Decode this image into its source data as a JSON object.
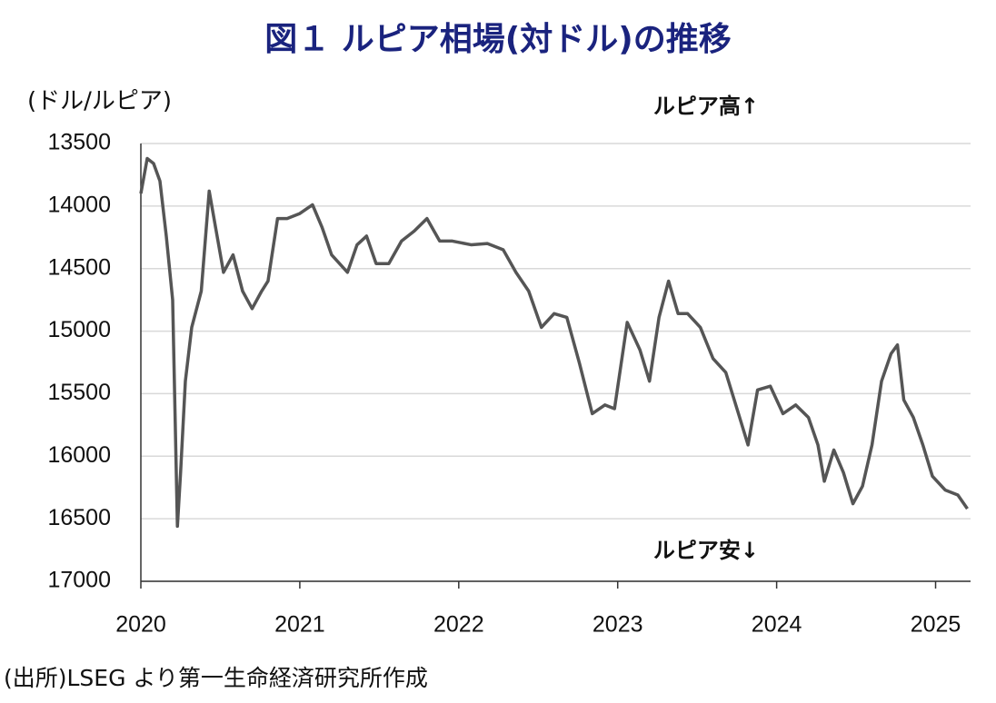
{
  "chart_data": {
    "type": "line",
    "title": "図１ ルピア相場(対ドル)の推移",
    "y_label": "(ドル/ルピア)",
    "annotations": [
      "ルピア高↑",
      "ルピア安↓"
    ],
    "source": "(出所)LSEG より第一生命経済研究所作成",
    "x": [
      2020.0,
      2020.04,
      2020.08,
      2020.12,
      2020.16,
      2020.2,
      2020.23,
      2020.25,
      2020.28,
      2020.32,
      2020.38,
      2020.43,
      2020.47,
      2020.52,
      2020.58,
      2020.64,
      2020.7,
      2020.76,
      2020.8,
      2020.86,
      2020.92,
      2021.0,
      2021.08,
      2021.14,
      2021.2,
      2021.3,
      2021.36,
      2021.42,
      2021.48,
      2021.56,
      2021.64,
      2021.72,
      2021.8,
      2021.88,
      2021.96,
      2022.08,
      2022.18,
      2022.28,
      2022.36,
      2022.44,
      2022.52,
      2022.6,
      2022.68,
      2022.76,
      2022.84,
      2022.92,
      2022.98,
      2023.06,
      2023.14,
      2023.2,
      2023.26,
      2023.32,
      2023.38,
      2023.44,
      2023.52,
      2023.6,
      2023.68,
      2023.76,
      2023.82,
      2023.88,
      2023.96,
      2024.04,
      2024.12,
      2024.2,
      2024.26,
      2024.3,
      2024.36,
      2024.42,
      2024.48,
      2024.54,
      2024.6,
      2024.66,
      2024.72,
      2024.76,
      2024.8,
      2024.86,
      2024.92,
      2024.98,
      2025.06,
      2025.14,
      2025.2
    ],
    "series": [
      {
        "name": "ドル/ルピア",
        "color": "#555555",
        "values": [
          13900,
          13620,
          13660,
          13800,
          14240,
          14750,
          16560,
          16130,
          15400,
          14970,
          14680,
          13880,
          14170,
          14530,
          14390,
          14680,
          14820,
          14680,
          14600,
          14100,
          14100,
          14060,
          13990,
          14170,
          14390,
          14530,
          14310,
          14240,
          14460,
          14460,
          14280,
          14200,
          14100,
          14280,
          14280,
          14310,
          14300,
          14350,
          14530,
          14680,
          14970,
          14860,
          14890,
          15260,
          15660,
          15590,
          15620,
          14930,
          15150,
          15400,
          14890,
          14600,
          14860,
          14860,
          14970,
          15220,
          15330,
          15660,
          15910,
          15470,
          15440,
          15660,
          15590,
          15690,
          15910,
          16200,
          15950,
          16130,
          16380,
          16240,
          15910,
          15400,
          15180,
          15110,
          15550,
          15690,
          15910,
          16160,
          16270,
          16310,
          16420
        ]
      }
    ],
    "xlim": [
      2020,
      2025.22
    ],
    "xticks": [
      2020,
      2021,
      2022,
      2023,
      2024,
      2025
    ],
    "ylim": [
      13500,
      17000
    ],
    "yticks": [
      13500,
      14000,
      14500,
      15000,
      15500,
      16000,
      16500,
      17000
    ],
    "y_inverted": true,
    "grid": true
  }
}
